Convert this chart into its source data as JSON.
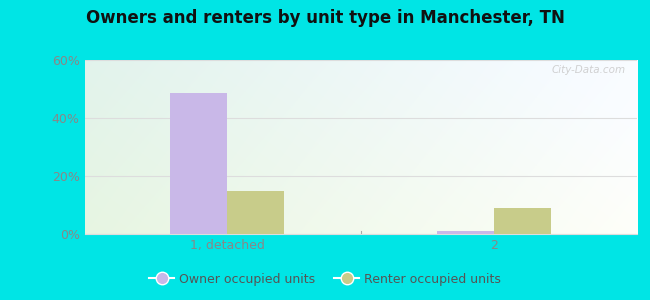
{
  "title": "Owners and renters by unit type in Manchester, TN",
  "categories": [
    "1, detached",
    "2"
  ],
  "owner_values": [
    48.5,
    1.0
  ],
  "renter_values": [
    15.0,
    9.0
  ],
  "owner_color": "#c9b8e8",
  "renter_color": "#c8cc8a",
  "ylim": [
    0,
    60
  ],
  "yticks": [
    0,
    20,
    40,
    60
  ],
  "ytick_labels": [
    "0%",
    "20%",
    "40%",
    "60%"
  ],
  "bar_width": 0.32,
  "outer_bg": "#00e5e5",
  "legend_owner": "Owner occupied units",
  "legend_renter": "Renter occupied units",
  "watermark": "City-Data.com",
  "title_fontsize": 12,
  "grid_color": "#dddddd",
  "label_color": "#888888"
}
